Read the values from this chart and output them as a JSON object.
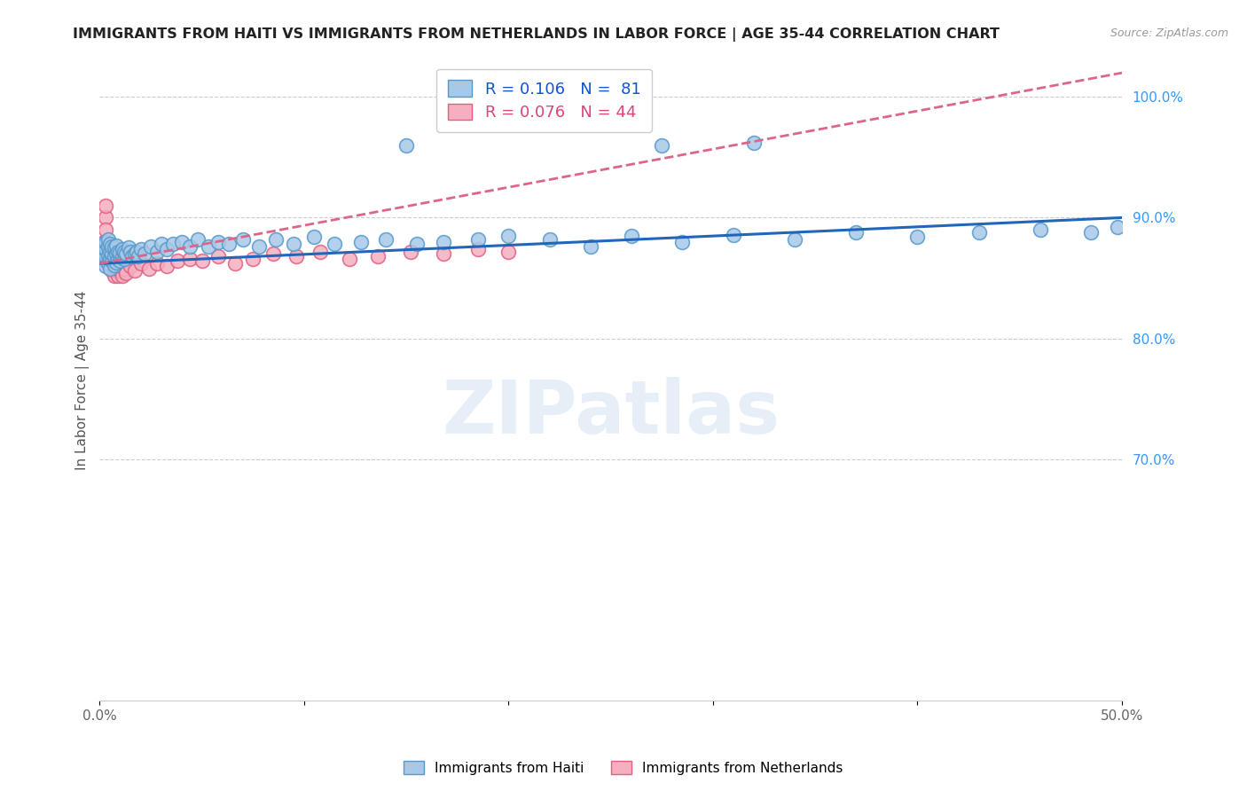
{
  "title": "IMMIGRANTS FROM HAITI VS IMMIGRANTS FROM NETHERLANDS IN LABOR FORCE | AGE 35-44 CORRELATION CHART",
  "source": "Source: ZipAtlas.com",
  "ylabel": "In Labor Force | Age 35-44",
  "xlim": [
    0.0,
    0.5
  ],
  "ylim": [
    0.5,
    1.03
  ],
  "haiti_color": "#a8c8e8",
  "haiti_edge": "#5599cc",
  "netherlands_color": "#f4afc0",
  "netherlands_edge": "#e06080",
  "trend_haiti_color": "#2266bb",
  "trend_netherlands_color": "#dd6688",
  "legend_R_haiti": "R = 0.106",
  "legend_N_haiti": "N =  81",
  "legend_R_haiti_color": "#1155cc",
  "legend_R_netherlands": "R = 0.076",
  "legend_N_netherlands": "N = 44",
  "legend_R_netherlands_color": "#dd4477",
  "watermark": "ZIPatlas",
  "grid_color": "#cccccc",
  "background_color": "#ffffff",
  "haiti_x": [
    0.001,
    0.001,
    0.002,
    0.002,
    0.002,
    0.003,
    0.003,
    0.003,
    0.003,
    0.004,
    0.004,
    0.004,
    0.004,
    0.005,
    0.005,
    0.005,
    0.005,
    0.006,
    0.006,
    0.006,
    0.007,
    0.007,
    0.007,
    0.008,
    0.008,
    0.008,
    0.009,
    0.009,
    0.01,
    0.01,
    0.011,
    0.011,
    0.012,
    0.012,
    0.013,
    0.014,
    0.015,
    0.016,
    0.017,
    0.018,
    0.019,
    0.02,
    0.022,
    0.025,
    0.028,
    0.03,
    0.033,
    0.036,
    0.04,
    0.044,
    0.048,
    0.053,
    0.058,
    0.063,
    0.07,
    0.078,
    0.086,
    0.095,
    0.105,
    0.115,
    0.128,
    0.14,
    0.155,
    0.168,
    0.185,
    0.2,
    0.22,
    0.24,
    0.26,
    0.285,
    0.31,
    0.34,
    0.37,
    0.4,
    0.43,
    0.46,
    0.485,
    0.498,
    0.15,
    0.275,
    0.32
  ],
  "haiti_y": [
    0.87,
    0.875,
    0.865,
    0.872,
    0.878,
    0.86,
    0.868,
    0.874,
    0.88,
    0.862,
    0.869,
    0.876,
    0.882,
    0.858,
    0.866,
    0.872,
    0.878,
    0.864,
    0.87,
    0.876,
    0.861,
    0.868,
    0.875,
    0.863,
    0.87,
    0.877,
    0.866,
    0.872,
    0.864,
    0.871,
    0.868,
    0.874,
    0.866,
    0.872,
    0.87,
    0.875,
    0.872,
    0.868,
    0.87,
    0.872,
    0.868,
    0.874,
    0.87,
    0.876,
    0.872,
    0.878,
    0.874,
    0.878,
    0.88,
    0.876,
    0.882,
    0.876,
    0.88,
    0.878,
    0.882,
    0.876,
    0.882,
    0.878,
    0.884,
    0.878,
    0.88,
    0.882,
    0.878,
    0.88,
    0.882,
    0.885,
    0.882,
    0.876,
    0.885,
    0.88,
    0.886,
    0.882,
    0.888,
    0.884,
    0.888,
    0.89,
    0.888,
    0.892,
    0.96,
    0.96,
    0.962
  ],
  "netherlands_x": [
    0.001,
    0.001,
    0.002,
    0.002,
    0.003,
    0.003,
    0.003,
    0.004,
    0.004,
    0.005,
    0.005,
    0.006,
    0.006,
    0.007,
    0.007,
    0.008,
    0.008,
    0.009,
    0.009,
    0.01,
    0.011,
    0.012,
    0.013,
    0.015,
    0.017,
    0.02,
    0.024,
    0.028,
    0.033,
    0.038,
    0.044,
    0.05,
    0.058,
    0.066,
    0.075,
    0.085,
    0.096,
    0.108,
    0.122,
    0.136,
    0.152,
    0.168,
    0.185,
    0.2
  ],
  "netherlands_y": [
    0.875,
    0.87,
    0.88,
    0.868,
    0.9,
    0.89,
    0.91,
    0.872,
    0.878,
    0.86,
    0.868,
    0.856,
    0.864,
    0.852,
    0.86,
    0.856,
    0.862,
    0.852,
    0.858,
    0.856,
    0.852,
    0.858,
    0.854,
    0.86,
    0.856,
    0.862,
    0.858,
    0.862,
    0.86,
    0.864,
    0.866,
    0.864,
    0.868,
    0.862,
    0.866,
    0.87,
    0.868,
    0.872,
    0.866,
    0.868,
    0.872,
    0.87,
    0.874,
    0.872
  ],
  "trend_haiti_x0": 0.0,
  "trend_haiti_y0": 0.862,
  "trend_haiti_x1": 0.5,
  "trend_haiti_y1": 0.9,
  "trend_neth_x0": 0.0,
  "trend_neth_y0": 0.862,
  "trend_neth_x1": 0.5,
  "trend_neth_y1": 1.02
}
